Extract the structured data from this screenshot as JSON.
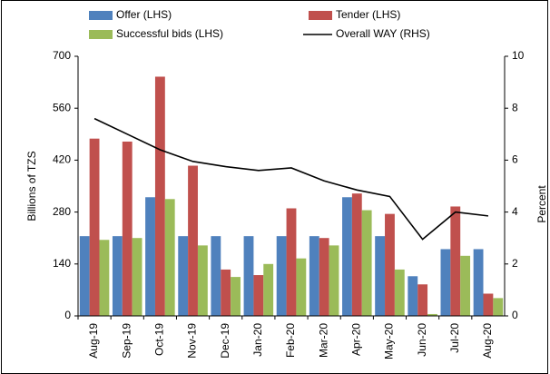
{
  "chart_data": {
    "type": "bar",
    "categories": [
      "Aug-19",
      "Sep-19",
      "Oct-19",
      "Nov-19",
      "Dec-19",
      "Jan-20",
      "Feb-20",
      "Mar-20",
      "Apr-20",
      "May-20",
      "Jun-20",
      "Jul-20",
      "Aug-20"
    ],
    "series": [
      {
        "name": "Offer (LHS)",
        "color": "#4f81bd",
        "values": [
          215,
          215,
          320,
          215,
          215,
          215,
          215,
          215,
          320,
          215,
          107,
          180,
          180
        ]
      },
      {
        "name": "Tender (LHS)",
        "color": "#c0504d",
        "values": [
          478,
          470,
          645,
          405,
          125,
          110,
          290,
          210,
          330,
          275,
          85,
          295,
          60
        ]
      },
      {
        "name": "Successful bids (LHS)",
        "color": "#9bbb59",
        "values": [
          205,
          210,
          315,
          190,
          105,
          140,
          155,
          190,
          285,
          125,
          5,
          162,
          48
        ]
      },
      {
        "name": "Overall WAY (RHS)",
        "color": "#000000",
        "type": "line",
        "axis": "y2",
        "values": [
          7.6,
          7.0,
          6.4,
          5.95,
          5.75,
          5.6,
          5.7,
          5.2,
          4.85,
          4.6,
          2.95,
          4.0,
          3.85
        ]
      }
    ],
    "ylabel": "Billions of TZS",
    "y2label": "Percent",
    "ylim": [
      0,
      700
    ],
    "yticks": [
      0,
      140,
      280,
      420,
      560,
      700
    ],
    "y2lim": [
      0,
      10
    ],
    "y2ticks": [
      0,
      2,
      4,
      6,
      8,
      10
    ]
  }
}
